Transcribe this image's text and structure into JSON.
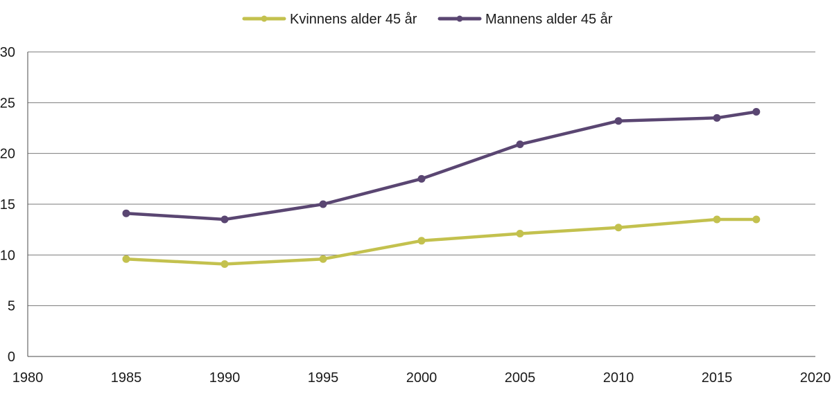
{
  "chart_data": {
    "type": "line",
    "title": "",
    "xlabel": "",
    "ylabel": "",
    "xlim": [
      1980,
      2020
    ],
    "ylim": [
      0,
      30
    ],
    "x_ticks": [
      1980,
      1985,
      1990,
      1995,
      2000,
      2005,
      2010,
      2015,
      2020
    ],
    "y_ticks": [
      0,
      5,
      10,
      15,
      20,
      25,
      30
    ],
    "grid": "horizontal",
    "legend_position": "top-center",
    "series": [
      {
        "name": "Kvinnens alder 45 år",
        "color": "#c3c14e",
        "x": [
          1985,
          1990,
          1995,
          2000,
          2005,
          2010,
          2015,
          2017
        ],
        "values": [
          9.6,
          9.1,
          9.6,
          11.4,
          12.1,
          12.7,
          13.5,
          13.5
        ]
      },
      {
        "name": "Mannens alder 45 år",
        "color": "#5a4672",
        "x": [
          1985,
          1990,
          1995,
          2000,
          2005,
          2010,
          2015,
          2017
        ],
        "values": [
          14.1,
          13.5,
          15.0,
          17.5,
          20.9,
          23.2,
          23.5,
          24.1
        ]
      }
    ]
  }
}
